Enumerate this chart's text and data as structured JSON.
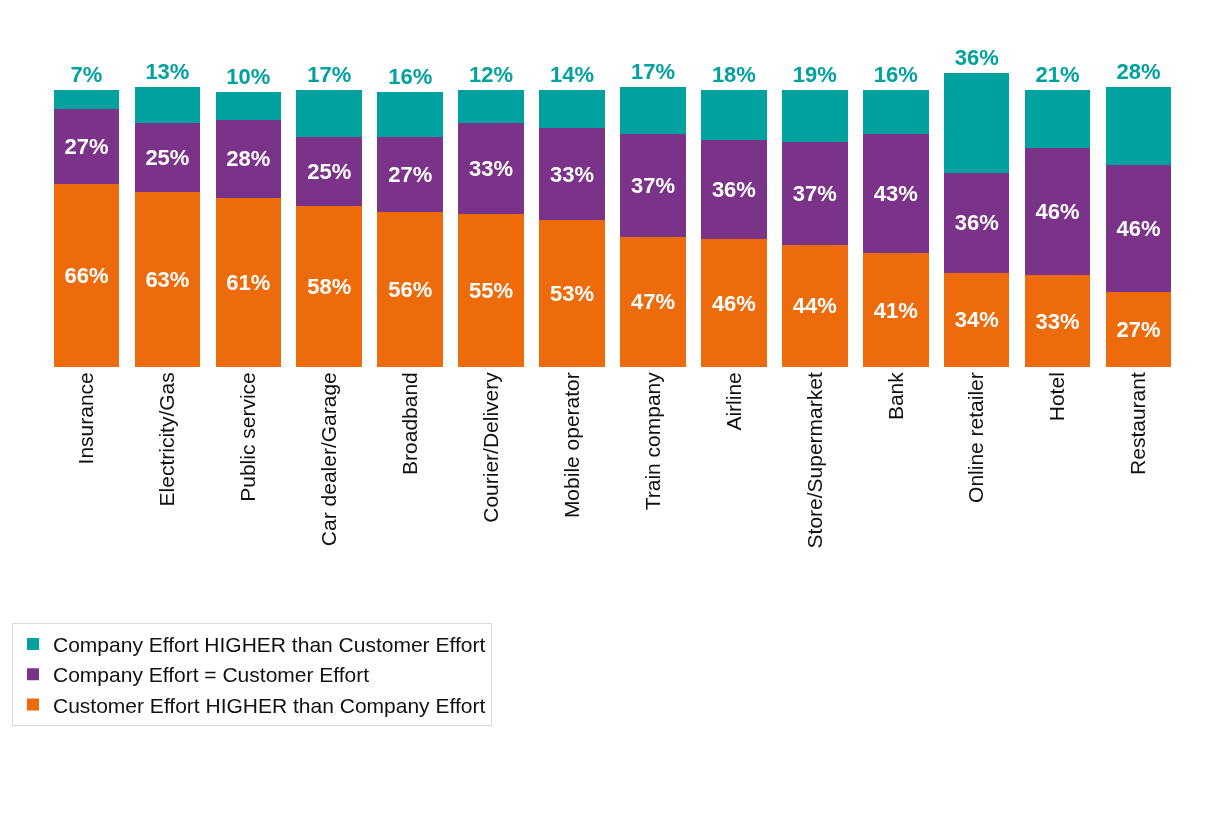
{
  "chart_data": {
    "type": "bar",
    "stacked": true,
    "legend": "bottom left",
    "categories": [
      "Insurance",
      "Electricity/Gas",
      "Public service",
      "Car dealer/Garage",
      "Broadband",
      "Courier/Delivery",
      "Mobile operator",
      "Train company",
      "Airline",
      "Store/Supermarket",
      "Bank",
      "Online retailer",
      "Hotel",
      "Restaurant"
    ],
    "series": [
      {
        "name": "Customer Effort HIGHER than Company Effort",
        "color": "#ee6b0b",
        "values": [
          66,
          63,
          61,
          58,
          56,
          55,
          53,
          47,
          46,
          44,
          41,
          34,
          33,
          27
        ],
        "value_labels": [
          "66%",
          "63%",
          "61%",
          "58%",
          "56%",
          "55%",
          "53%",
          "47%",
          "46%",
          "44%",
          "41%",
          "34%",
          "33%",
          "27%"
        ]
      },
      {
        "name": "Company Effort = Customer Effort",
        "color": "#7b3289",
        "values": [
          27,
          25,
          28,
          25,
          27,
          33,
          33,
          37,
          36,
          37,
          43,
          36,
          46,
          46
        ],
        "value_labels": [
          "27%",
          "25%",
          "28%",
          "25%",
          "27%",
          "33%",
          "33%",
          "37%",
          "36%",
          "37%",
          "43%",
          "36%",
          "46%",
          "46%"
        ]
      },
      {
        "name": "Company Effort HIGHER than Customer Effort",
        "color": "#00a19f",
        "values": [
          7,
          13,
          10,
          17,
          16,
          12,
          14,
          17,
          18,
          19,
          16,
          36,
          21,
          28
        ],
        "value_labels": [
          "7%",
          "13%",
          "10%",
          "17%",
          "16%",
          "12%",
          "14%",
          "17%",
          "18%",
          "19%",
          "16%",
          "36%",
          "21%",
          "28%"
        ]
      }
    ]
  }
}
